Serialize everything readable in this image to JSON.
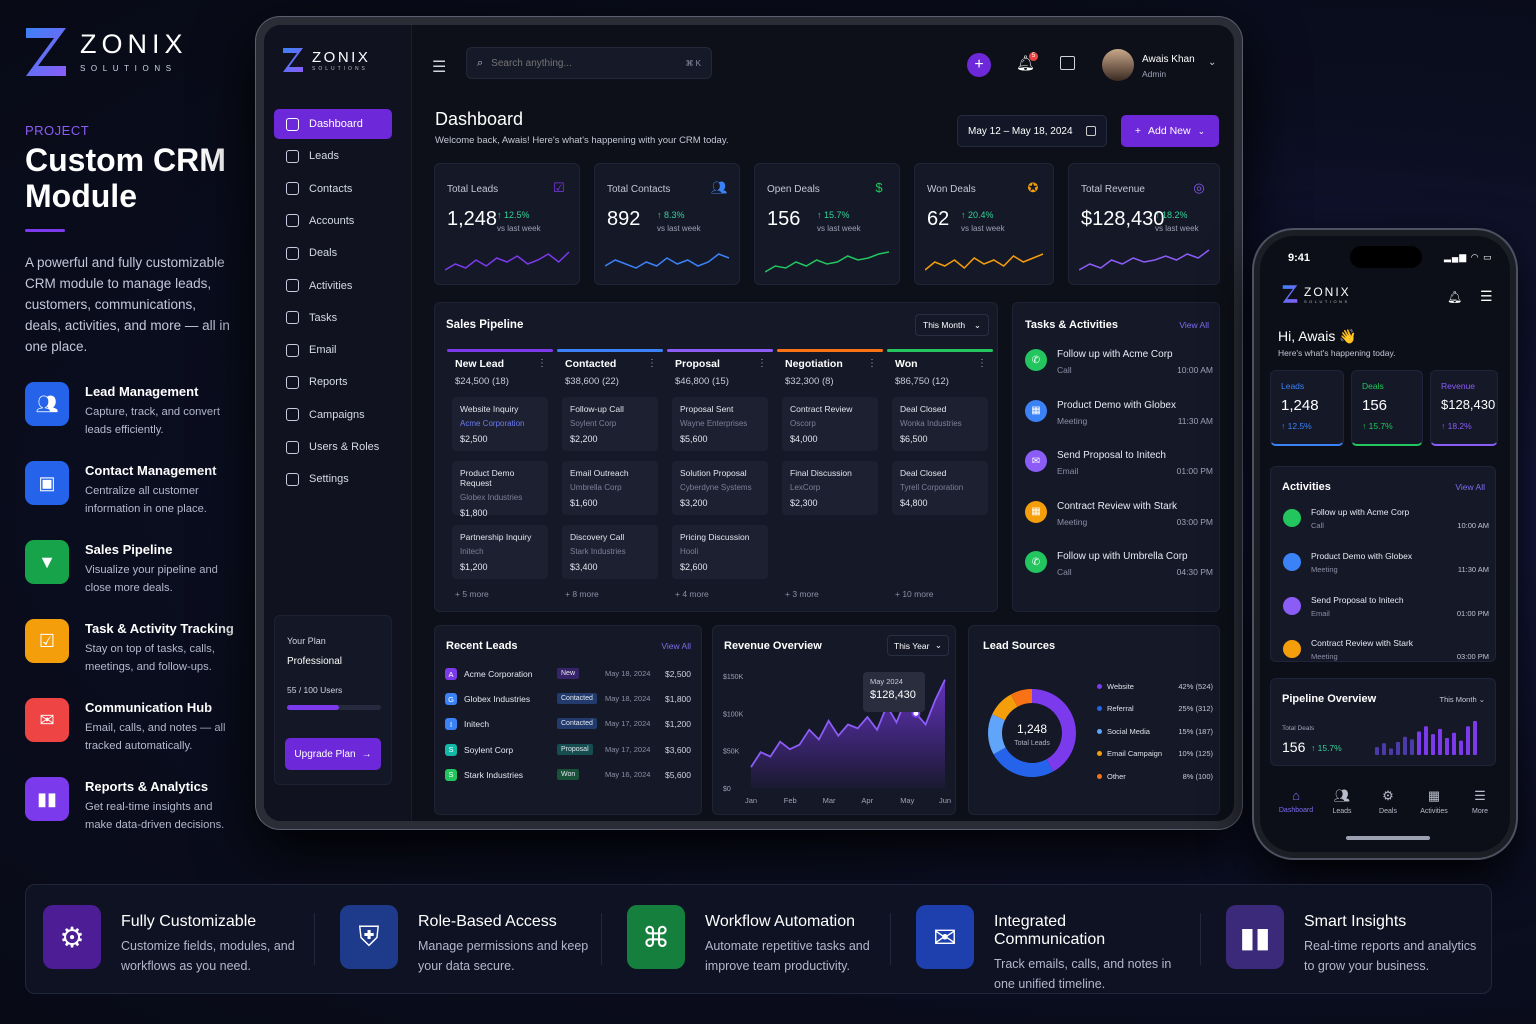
{
  "brand": {
    "name": "ZONIX",
    "sub": "SOLUTIONS"
  },
  "promo": {
    "project_label": "PROJECT",
    "title": "Custom CRM Module",
    "desc": "A powerful and fully customizable CRM module to manage leads, customers, communications, deals, activities, and more — all in one place.",
    "features": [
      {
        "title": "Lead Management",
        "desc": "Capture, track, and convert leads efficiently.",
        "icon": "users-icon",
        "color": "#2563eb"
      },
      {
        "title": "Contact Management",
        "desc": "Centralize all customer information in one place.",
        "icon": "contact-card-icon",
        "color": "#2563eb"
      },
      {
        "title": "Sales Pipeline",
        "desc": "Visualize your pipeline and close more deals.",
        "icon": "funnel-icon",
        "color": "#16a34a"
      },
      {
        "title": "Task & Activity Tracking",
        "desc": "Stay on top of tasks, calls, meetings, and follow-ups.",
        "icon": "checklist-icon",
        "color": "#f59e0b"
      },
      {
        "title": "Communication Hub",
        "desc": "Email, calls, and notes — all tracked automatically.",
        "icon": "mail-icon",
        "color": "#ef4444"
      },
      {
        "title": "Reports & Analytics",
        "desc": "Get real-time insights and make data-driven decisions.",
        "icon": "bar-chart-icon",
        "color": "#7c3aed"
      }
    ]
  },
  "app": {
    "search_placeholder": "Search anything...",
    "search_shortcut": "⌘ K",
    "notif_count": "5",
    "user": {
      "name": "Awais Khan",
      "role": "Admin"
    },
    "nav": [
      {
        "label": "Dashboard",
        "icon": "grid-icon"
      },
      {
        "label": "Leads",
        "icon": "users-icon"
      },
      {
        "label": "Contacts",
        "icon": "contacts-icon"
      },
      {
        "label": "Accounts",
        "icon": "building-icon"
      },
      {
        "label": "Deals",
        "icon": "deal-icon"
      },
      {
        "label": "Activities",
        "icon": "calendar-icon"
      },
      {
        "label": "Tasks",
        "icon": "checkbox-icon"
      },
      {
        "label": "Email",
        "icon": "mail-icon"
      },
      {
        "label": "Reports",
        "icon": "report-icon"
      },
      {
        "label": "Campaigns",
        "icon": "megaphone-icon"
      },
      {
        "label": "Users & Roles",
        "icon": "user-icon"
      },
      {
        "label": "Settings",
        "icon": "gear-icon"
      }
    ],
    "plan": {
      "label": "Your Plan",
      "name": "Professional",
      "users": "55 / 100 Users",
      "usage": 0.55,
      "button": "Upgrade Plan"
    },
    "header": {
      "title": "Dashboard",
      "subtitle": "Welcome back, Awais! Here's what's happening with your CRM today.",
      "date_range": "May 12 – May 18, 2024",
      "add_new": "Add New"
    },
    "stats": [
      {
        "label": "Total Leads",
        "value": "1,248",
        "change": "↑ 12.5%",
        "vs": "vs last week",
        "color": "#7c3aed",
        "icon": "calendar-check-icon"
      },
      {
        "label": "Total Contacts",
        "value": "892",
        "change": "↑ 8.3%",
        "vs": "vs last week",
        "color": "#3b82f6",
        "icon": "users-icon"
      },
      {
        "label": "Open Deals",
        "value": "156",
        "change": "↑ 15.7%",
        "vs": "vs last week",
        "color": "#22c55e",
        "icon": "dollar-icon"
      },
      {
        "label": "Won Deals",
        "value": "62",
        "change": "↑ 20.4%",
        "vs": "vs last week",
        "color": "#f59e0b",
        "icon": "medal-icon"
      },
      {
        "label": "Total Revenue",
        "value": "$128,430",
        "change": "↑ 18.2%",
        "vs": "vs last week",
        "color": "#8b5cf6",
        "icon": "coin-icon"
      }
    ],
    "pipeline": {
      "title": "Sales Pipeline",
      "filter": "This Month",
      "columns": [
        {
          "name": "New Lead",
          "summary": "$24,500 (18)",
          "color": "#7c3aed",
          "more": "+ 5 more",
          "deals": [
            {
              "t": "Website Inquiry",
              "c": "Acme Corporation",
              "v": "$2,500"
            },
            {
              "t": "Product Demo Request",
              "c": "Globex Industries",
              "v": "$1,800"
            },
            {
              "t": "Partnership Inquiry",
              "c": "Initech",
              "v": "$1,200"
            }
          ]
        },
        {
          "name": "Contacted",
          "summary": "$38,600 (22)",
          "color": "#3b82f6",
          "more": "+ 8 more",
          "deals": [
            {
              "t": "Follow-up Call",
              "c": "Soylent Corp",
              "v": "$2,200"
            },
            {
              "t": "Email Outreach",
              "c": "Umbrella Corp",
              "v": "$1,600"
            },
            {
              "t": "Discovery Call",
              "c": "Stark Industries",
              "v": "$3,400"
            }
          ]
        },
        {
          "name": "Proposal",
          "summary": "$46,800 (15)",
          "color": "#8b5cf6",
          "more": "+ 4 more",
          "deals": [
            {
              "t": "Proposal Sent",
              "c": "Wayne Enterprises",
              "v": "$5,600"
            },
            {
              "t": "Solution Proposal",
              "c": "Cyberdyne Systems",
              "v": "$3,200"
            },
            {
              "t": "Pricing Discussion",
              "c": "Hooli",
              "v": "$2,600"
            }
          ]
        },
        {
          "name": "Negotiation",
          "summary": "$32,300 (8)",
          "color": "#f97316",
          "more": "+ 3 more",
          "deals": [
            {
              "t": "Contract Review",
              "c": "Oscorp",
              "v": "$4,000"
            },
            {
              "t": "Final Discussion",
              "c": "LexCorp",
              "v": "$2,300"
            }
          ]
        },
        {
          "name": "Won",
          "summary": "$86,750 (12)",
          "color": "#22c55e",
          "more": "+ 10 more",
          "deals": [
            {
              "t": "Deal Closed",
              "c": "Wonka Industries",
              "v": "$6,500"
            },
            {
              "t": "Deal Closed",
              "c": "Tyrell Corporation",
              "v": "$4,800"
            }
          ]
        }
      ]
    },
    "tasks": {
      "title": "Tasks & Activities",
      "view_all": "View All",
      "items": [
        {
          "t": "Follow up with Acme Corp",
          "s": "Call",
          "time": "10:00 AM",
          "color": "#22c55e",
          "icon": "phone-icon"
        },
        {
          "t": "Product Demo with Globex",
          "s": "Meeting",
          "time": "11:30 AM",
          "color": "#3b82f6",
          "icon": "calendar-icon"
        },
        {
          "t": "Send Proposal to Initech",
          "s": "Email",
          "time": "01:00 PM",
          "color": "#8b5cf6",
          "icon": "mail-icon"
        },
        {
          "t": "Contract Review with Stark",
          "s": "Meeting",
          "time": "03:00 PM",
          "color": "#f59e0b",
          "icon": "calendar-icon"
        },
        {
          "t": "Follow up with Umbrella Corp",
          "s": "Call",
          "time": "04:30 PM",
          "color": "#22c55e",
          "icon": "phone-icon"
        }
      ]
    },
    "recent": {
      "title": "Recent Leads",
      "view_all": "View All",
      "rows": [
        {
          "i": "A",
          "name": "Acme Corporation",
          "status": "New",
          "date": "May 18, 2024",
          "amt": "$2,500",
          "color": "#7c3aed"
        },
        {
          "i": "G",
          "name": "Globex Industries",
          "status": "Contacted",
          "date": "May 18, 2024",
          "amt": "$1,800",
          "color": "#3b82f6"
        },
        {
          "i": "I",
          "name": "Initech",
          "status": "Contacted",
          "date": "May 17, 2024",
          "amt": "$1,200",
          "color": "#3b82f6"
        },
        {
          "i": "S",
          "name": "Soylent Corp",
          "status": "Proposal",
          "date": "May 17, 2024",
          "amt": "$3,600",
          "color": "#14b8a6"
        },
        {
          "i": "S",
          "name": "Stark Industries",
          "status": "Won",
          "date": "May 16, 2024",
          "amt": "$5,600",
          "color": "#22c55e"
        }
      ]
    },
    "revenue": {
      "title": "Revenue Overview",
      "filter": "This Year",
      "tooltip_label": "May 2024",
      "tooltip_value": "$128,430"
    },
    "sources": {
      "title": "Lead Sources",
      "total": "1,248",
      "total_label": "Total Leads",
      "items": [
        {
          "name": "Website",
          "pct": "42% (524)",
          "value": 42,
          "color": "#7c3aed"
        },
        {
          "name": "Referral",
          "pct": "25% (312)",
          "value": 25,
          "color": "#2563eb"
        },
        {
          "name": "Social Media",
          "pct": "15% (187)",
          "value": 15,
          "color": "#60a5fa"
        },
        {
          "name": "Email Campaign",
          "pct": "10% (125)",
          "value": 10,
          "color": "#f59e0b"
        },
        {
          "name": "Other",
          "pct": "8% (100)",
          "value": 8,
          "color": "#f97316"
        }
      ]
    }
  },
  "chart_data": {
    "type": "area",
    "categories": [
      "Jan",
      "Feb",
      "Mar",
      "Apr",
      "May",
      "Jun"
    ],
    "ylabels": [
      "$150K",
      "$100K",
      "$50K",
      "$0"
    ],
    "ylim": [
      0,
      150000
    ],
    "x": [
      0,
      0.25,
      0.5,
      0.75,
      1,
      1.25,
      1.5,
      1.75,
      2,
      2.25,
      2.5,
      2.75,
      3,
      3.25,
      3.5,
      3.75,
      4,
      4.25,
      4.5,
      4.75,
      5
    ],
    "values": [
      28000,
      48000,
      42000,
      62000,
      52000,
      58000,
      78000,
      65000,
      90000,
      70000,
      85000,
      80000,
      95000,
      78000,
      110000,
      88000,
      120000,
      100000,
      85000,
      118000,
      145000
    ]
  },
  "phone": {
    "time": "9:41",
    "greeting": "Hi, Awais 👋",
    "sub": "Here's what's happening today.",
    "stats": [
      {
        "label": "Leads",
        "value": "1,248",
        "change": "↑ 12.5%",
        "color": "#3b82f6"
      },
      {
        "label": "Deals",
        "value": "156",
        "change": "↑ 15.7%",
        "color": "#22c55e"
      },
      {
        "label": "Revenue",
        "value": "$128,430",
        "change": "↑ 18.2%",
        "color": "#8b5cf6"
      }
    ],
    "activities_title": "Activities",
    "view_all": "View All",
    "activities": [
      {
        "t": "Follow up with Acme Corp",
        "s": "Call",
        "time": "10:00 AM",
        "color": "#22c55e"
      },
      {
        "t": "Product Demo with Globex",
        "s": "Meeting",
        "time": "11:30 AM",
        "color": "#3b82f6"
      },
      {
        "t": "Send Proposal to Initech",
        "s": "Email",
        "time": "01:00 PM",
        "color": "#8b5cf6"
      },
      {
        "t": "Contract Review with Stark",
        "s": "Meeting",
        "time": "03:00 PM",
        "color": "#f59e0b"
      }
    ],
    "pipeline_title": "Pipeline Overview",
    "pipeline_filter": "This Month",
    "total_deals_label": "Total Deals",
    "total_deals": "156",
    "total_change": "↑ 15.7%",
    "bars": [
      6,
      9,
      5,
      10,
      14,
      12,
      18,
      22,
      16,
      20,
      13,
      17,
      11,
      22,
      26
    ],
    "tabs": [
      {
        "label": "Dashboard",
        "icon": "home-icon"
      },
      {
        "label": "Leads",
        "icon": "users-icon"
      },
      {
        "label": "Deals",
        "icon": "deal-icon"
      },
      {
        "label": "Activities",
        "icon": "calendar-icon"
      },
      {
        "label": "More",
        "icon": "menu-icon"
      }
    ]
  },
  "bottom": [
    {
      "title": "Fully Customizable",
      "desc": "Customize fields, modules, and workflows as you need.",
      "icon": "gear-icon",
      "color": "#4c1d95"
    },
    {
      "title": "Role-Based Access",
      "desc": "Manage permissions and keep your data secure.",
      "icon": "shield-icon",
      "color": "#1e3a8a"
    },
    {
      "title": "Workflow Automation",
      "desc": "Automate repetitive tasks and improve team productivity.",
      "icon": "workflow-icon",
      "color": "#15803d"
    },
    {
      "title": "Integrated Communication",
      "desc": "Track emails, calls, and notes in one unified timeline.",
      "icon": "mail-icon",
      "color": "#1e40af"
    },
    {
      "title": "Smart Insights",
      "desc": "Real-time reports and analytics to grow your business.",
      "icon": "bar-chart-icon",
      "color": "#3b2a7a"
    }
  ]
}
